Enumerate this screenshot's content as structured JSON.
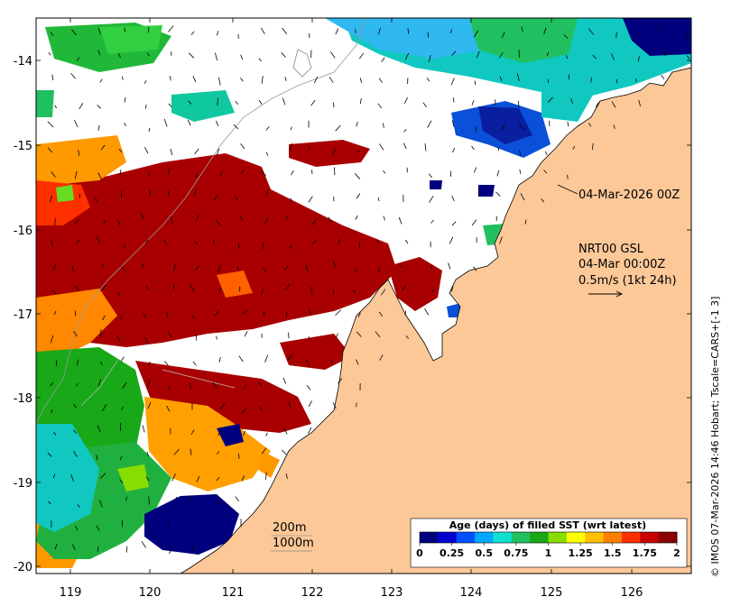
{
  "axes": {
    "x_ticks": [
      "119",
      "120",
      "121",
      "122",
      "123",
      "124",
      "125",
      "126"
    ],
    "y_ticks": [
      "-14",
      "-15",
      "-16",
      "-17",
      "-18",
      "-19",
      "-20"
    ]
  },
  "annotations": {
    "track_time": "04-Mar-2026 00Z",
    "product": "NRT00 GSL",
    "valid_time": "04-Mar 00:00Z",
    "vector_scale": "0.5m/s (1kt 24h)",
    "isobath_200": "200m",
    "isobath_1000": "1000m"
  },
  "colorbar": {
    "title": "Age (days) of filled SST (wrt latest)",
    "ticks": [
      "0",
      "0.25",
      "0.5",
      "0.75",
      "1",
      "1.25",
      "1.5",
      "1.75",
      "2"
    ],
    "colors": [
      "#00007f",
      "#0000d0",
      "#0050ff",
      "#00a8ff",
      "#10e0d0",
      "#20c060",
      "#18a818",
      "#88dd00",
      "#ffff00",
      "#ffc000",
      "#ff8000",
      "#ff3000",
      "#c80000",
      "#8b0000"
    ]
  },
  "credit": "© IMOS 07-Mar-2026 14:46 Hobart; Tscale=CARS+[-1 3]",
  "colors": {
    "land": "#fcc898",
    "ocean_nodata": "#ffffff",
    "age_0": "#00007f",
    "age_0_5": "#0a50d8",
    "age_1": "#10c870",
    "age_1_5": "#ff9900",
    "age_2": "#a80000"
  }
}
